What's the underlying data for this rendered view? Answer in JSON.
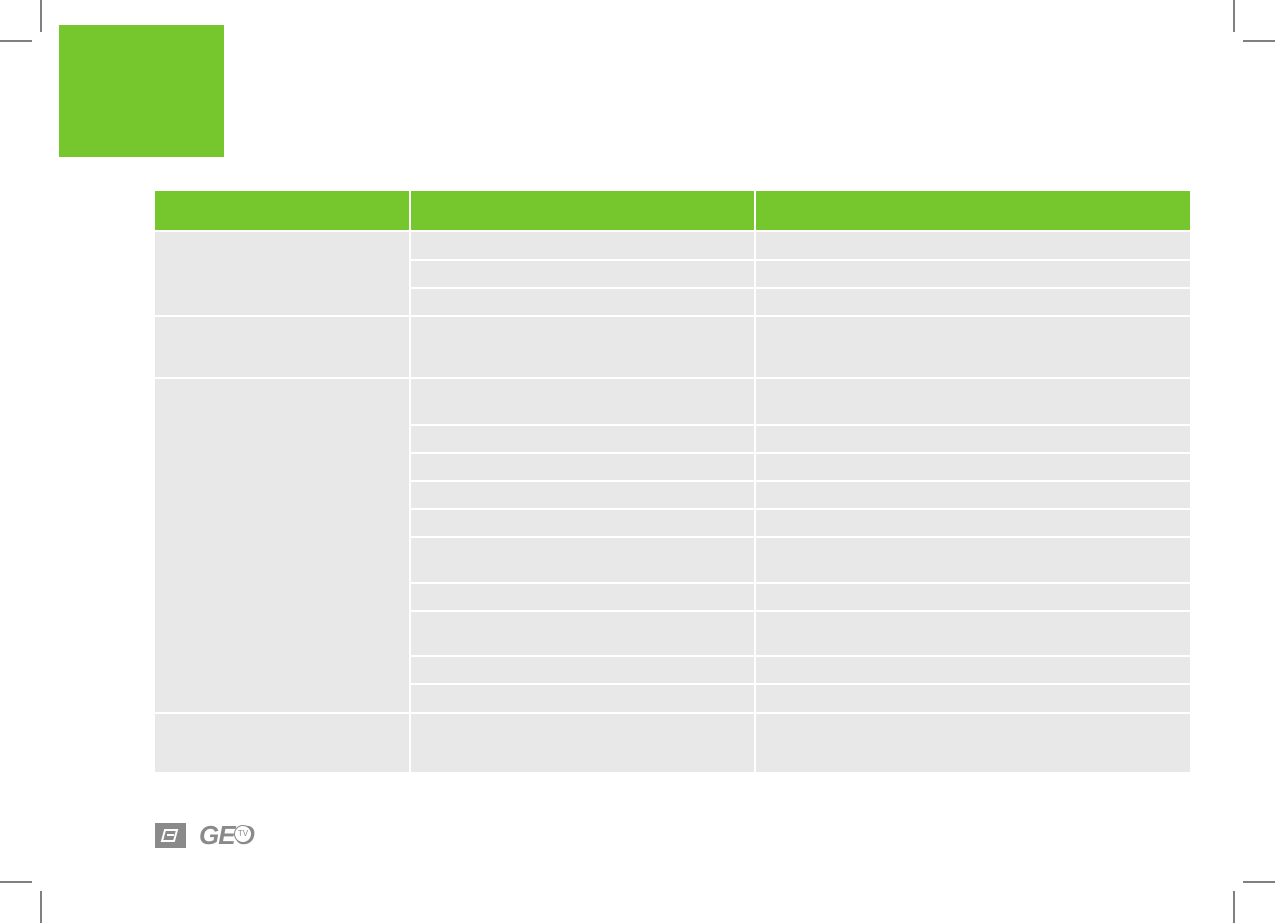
{
  "footer": {
    "logo_text": "GEO",
    "logo_badge": "TV"
  }
}
